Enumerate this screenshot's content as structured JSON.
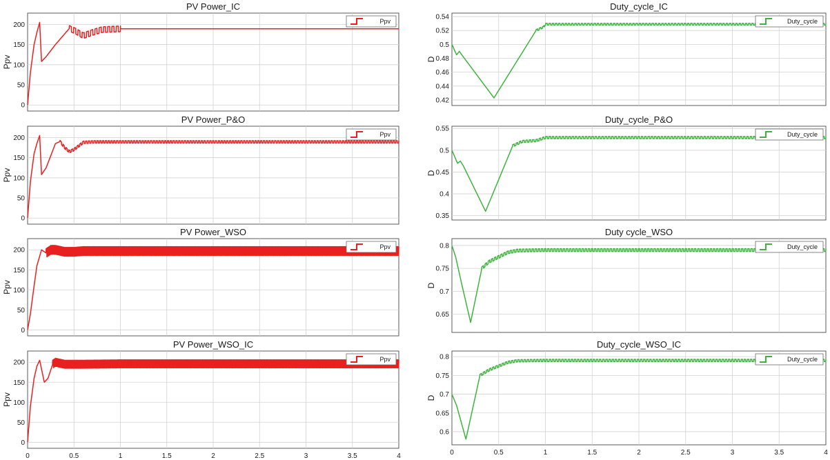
{
  "chart_data": [
    {
      "type": "line",
      "title": "PV Power_IC",
      "ylabel": "Ppv",
      "legend": "top-right",
      "grid": true,
      "xlim": [
        0,
        4
      ],
      "ylim": [
        -15,
        228
      ],
      "yticks": [
        0,
        50,
        100,
        150,
        200
      ],
      "ytick_labels": [
        "0",
        "50",
        "100",
        "150",
        "200"
      ],
      "xticks": [
        0.5,
        1,
        1.5,
        2,
        2.5,
        3,
        3.5,
        4
      ],
      "xtick_labels": [],
      "color": "#e8201f",
      "series": [
        {
          "name": "Ppv",
          "x": [
            0,
            0.03,
            0.07,
            0.1,
            0.13,
            0.15,
            0.2,
            0.3,
            0.45,
            0.52,
            0.6,
            0.7,
            0.8,
            1.0,
            2.0,
            3.0,
            4.0
          ],
          "y": [
            0,
            80,
            150,
            180,
            205,
            108,
            120,
            150,
            190,
            183,
            172,
            180,
            187,
            189,
            189,
            189,
            189
          ],
          "ripple": {
            "from": 0.45,
            "to": 1.0,
            "amplitude": 7,
            "cycles": 12
          }
        }
      ]
    },
    {
      "type": "line",
      "title": "PV Power_P&O",
      "ylabel": "Ppv",
      "legend": "top-right",
      "grid": true,
      "xlim": [
        0,
        4
      ],
      "ylim": [
        -15,
        228
      ],
      "yticks": [
        0,
        50,
        100,
        150,
        200
      ],
      "ytick_labels": [
        "0",
        "50",
        "100",
        "150",
        "200"
      ],
      "xticks": [
        0.5,
        1,
        1.5,
        2,
        2.5,
        3,
        3.5,
        4
      ],
      "xtick_labels": [],
      "color": "#e8201f",
      "series": [
        {
          "name": "Ppv",
          "x": [
            0,
            0.03,
            0.07,
            0.1,
            0.13,
            0.15,
            0.2,
            0.3,
            0.35,
            0.4,
            0.45,
            0.5,
            0.6,
            0.7,
            1.0,
            2.0,
            3.0,
            4.0
          ],
          "y": [
            0,
            90,
            160,
            185,
            205,
            108,
            125,
            185,
            190,
            175,
            165,
            170,
            188,
            189,
            189,
            189,
            189,
            189
          ],
          "ripple": {
            "from": 0.35,
            "to": 4.0,
            "amplitude": 3,
            "cycles": 120
          }
        }
      ]
    },
    {
      "type": "line",
      "title": "PV Power_WSO",
      "ylabel": "Ppv",
      "legend": "top-right",
      "grid": true,
      "xlim": [
        0,
        4
      ],
      "ylim": [
        -15,
        228
      ],
      "yticks": [
        0,
        50,
        100,
        150,
        200
      ],
      "ytick_labels": [
        "0",
        "50",
        "100",
        "150",
        "200"
      ],
      "xticks": [
        0.5,
        1,
        1.5,
        2,
        2.5,
        3,
        3.5,
        4
      ],
      "xtick_labels": [],
      "color": "#e8201f",
      "series": [
        {
          "name": "Ppv",
          "x": [
            0,
            0.03,
            0.07,
            0.1,
            0.15,
            0.2,
            0.25,
            0.3,
            0.4,
            0.5,
            0.6,
            1.0,
            2.0,
            3.0,
            4.0
          ],
          "y": [
            0,
            40,
            110,
            160,
            200,
            192,
            200,
            200,
            195,
            195,
            197,
            197,
            197,
            197,
            197
          ],
          "ripple": {
            "from": 0.2,
            "to": 4.0,
            "amplitude": 11,
            "cycles": 260
          }
        }
      ]
    },
    {
      "type": "line",
      "title": "PV Power_WSO_IC",
      "ylabel": "Ppv",
      "legend": "top-right",
      "grid": true,
      "xlim": [
        0,
        4
      ],
      "ylim": [
        -15,
        228
      ],
      "yticks": [
        0,
        50,
        100,
        150,
        200
      ],
      "ytick_labels": [
        "0",
        "50",
        "100",
        "150",
        "200"
      ],
      "xticks": [
        0,
        0.5,
        1,
        1.5,
        2,
        2.5,
        3,
        3.5,
        4
      ],
      "xtick_labels": [
        "0",
        "0.5",
        "1",
        "1.5",
        "2",
        "2.5",
        "3",
        "3.5",
        "4"
      ],
      "color": "#e8201f",
      "series": [
        {
          "name": "Ppv",
          "x": [
            0,
            0.03,
            0.07,
            0.1,
            0.13,
            0.18,
            0.22,
            0.27,
            0.3,
            0.4,
            0.6,
            1.0,
            2.0,
            3.0,
            4.0
          ],
          "y": [
            0,
            90,
            160,
            190,
            205,
            150,
            160,
            195,
            200,
            195,
            195,
            196,
            196,
            196,
            196
          ],
          "ripple": {
            "from": 0.27,
            "to": 4.0,
            "amplitude": 10,
            "cycles": 260
          }
        }
      ]
    },
    {
      "type": "line",
      "title": "Duty_cycle_IC",
      "ylabel": "D",
      "legend": "top-right",
      "grid": true,
      "xlim": [
        0,
        4
      ],
      "ylim": [
        0.412,
        0.545
      ],
      "yticks": [
        0.42,
        0.44,
        0.46,
        0.48,
        0.5,
        0.52,
        0.54
      ],
      "ytick_labels": [
        "0.42",
        "0.44",
        "0.46",
        "0.48",
        "0.5",
        "0.52",
        "0.54"
      ],
      "xticks": [
        0.5,
        1,
        1.5,
        2,
        2.5,
        3,
        3.5,
        4
      ],
      "xtick_labels": [],
      "color": "#3cb43c",
      "series": [
        {
          "name": "Duty_cycle",
          "x": [
            0,
            0.05,
            0.08,
            0.1,
            0.45,
            0.9,
            0.98,
            1.0,
            2.0,
            3.0,
            4.0
          ],
          "y": [
            0.5,
            0.485,
            0.49,
            0.486,
            0.423,
            0.52,
            0.525,
            0.529,
            0.529,
            0.529,
            0.529
          ],
          "ripple": {
            "from": 0.9,
            "to": 4.0,
            "amplitude": 0.0012,
            "cycles": 90
          }
        }
      ]
    },
    {
      "type": "line",
      "title": "Duty_cycle_P&O",
      "ylabel": "D",
      "legend": "top-right",
      "grid": true,
      "xlim": [
        0,
        4
      ],
      "ylim": [
        0.34,
        0.555
      ],
      "yticks": [
        0.35,
        0.4,
        0.45,
        0.5,
        0.55
      ],
      "ytick_labels": [
        "0.35",
        "0.4",
        "0.45",
        "0.5",
        "0.55"
      ],
      "xticks": [
        0.5,
        1,
        1.5,
        2,
        2.5,
        3,
        3.5,
        4
      ],
      "xtick_labels": [],
      "color": "#3cb43c",
      "series": [
        {
          "name": "Duty_cycle",
          "x": [
            0,
            0.06,
            0.09,
            0.12,
            0.36,
            0.65,
            0.75,
            0.9,
            1.0,
            2.0,
            3.0,
            4.0
          ],
          "y": [
            0.5,
            0.47,
            0.475,
            0.465,
            0.36,
            0.51,
            0.52,
            0.522,
            0.529,
            0.529,
            0.529,
            0.529
          ],
          "ripple": {
            "from": 0.65,
            "to": 4.0,
            "amplitude": 0.0025,
            "cycles": 95
          }
        }
      ]
    },
    {
      "type": "line",
      "title": "Duty cycle_WSO",
      "ylabel": "D",
      "legend": "top-right",
      "grid": true,
      "xlim": [
        0,
        4
      ],
      "ylim": [
        0.61,
        0.815
      ],
      "yticks": [
        0.65,
        0.7,
        0.75,
        0.8
      ],
      "ytick_labels": [
        "0.65",
        "0.7",
        "0.75",
        "0.8"
      ],
      "xticks": [
        0.5,
        1,
        1.5,
        2,
        2.5,
        3,
        3.5,
        4
      ],
      "xtick_labels": [],
      "color": "#3cb43c",
      "series": [
        {
          "name": "Duty_cycle",
          "x": [
            0,
            0.04,
            0.1,
            0.2,
            0.32,
            0.4,
            0.5,
            0.6,
            0.7,
            1.0,
            2.0,
            3.0,
            4.0
          ],
          "y": [
            0.8,
            0.775,
            0.72,
            0.632,
            0.75,
            0.765,
            0.775,
            0.785,
            0.789,
            0.79,
            0.79,
            0.79,
            0.79
          ],
          "ripple": {
            "from": 0.32,
            "to": 4.0,
            "amplitude": 0.003,
            "cycles": 110
          }
        }
      ]
    },
    {
      "type": "line",
      "title": "Duty_cycle_WSO_IC",
      "ylabel": "D",
      "legend": "top-right",
      "grid": true,
      "xlim": [
        0,
        4
      ],
      "ylim": [
        0.565,
        0.815
      ],
      "yticks": [
        0.6,
        0.65,
        0.7,
        0.75,
        0.8
      ],
      "ytick_labels": [
        "0.6",
        "0.65",
        "0.7",
        "0.75",
        "0.8"
      ],
      "xticks": [
        0,
        0.5,
        1,
        1.5,
        2,
        2.5,
        3,
        3.5,
        4
      ],
      "xtick_labels": [
        "0",
        "0.5",
        "1",
        "1.5",
        "2",
        "2.5",
        "3",
        "3.5",
        "4"
      ],
      "color": "#3cb43c",
      "series": [
        {
          "name": "Duty_cycle",
          "x": [
            0,
            0.05,
            0.15,
            0.3,
            0.4,
            0.5,
            0.6,
            0.7,
            1.0,
            2.0,
            3.0,
            4.0
          ],
          "y": [
            0.7,
            0.67,
            0.58,
            0.75,
            0.765,
            0.775,
            0.785,
            0.789,
            0.79,
            0.79,
            0.79,
            0.79
          ],
          "ripple": {
            "from": 0.3,
            "to": 4.0,
            "amplitude": 0.003,
            "cycles": 110
          }
        }
      ]
    }
  ]
}
